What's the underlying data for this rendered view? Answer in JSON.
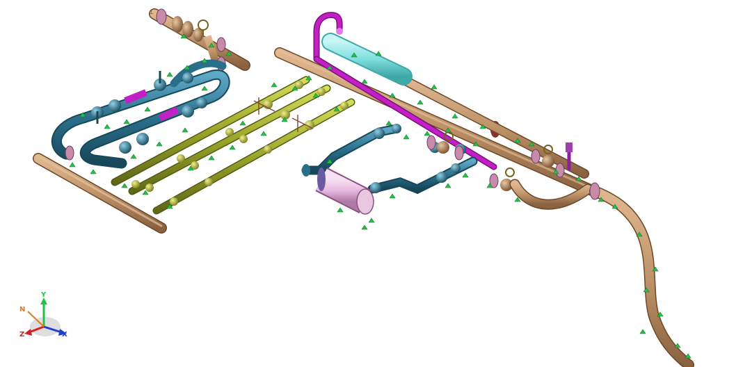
{
  "viewport": {
    "background": "#ffffff",
    "description_hidden": true
  },
  "colors": {
    "bronze_pipe": "#c0946a",
    "bronze_dark": "#8a6240",
    "teal_pipe": "#2a6f8a",
    "teal_light": "#4f9bb8",
    "olive_pipe": "#9aa52a",
    "olive_light": "#c5cf4a",
    "magenta_pipe": "#c21fc7",
    "cyan_vessel": "#7fdede",
    "pink_vessel": "#e8b8e0",
    "flange_pink": "#c78aa8",
    "support_green": "#22c24a",
    "valve_yellow": "#e2e24a"
  },
  "axis_triad": {
    "labels": {
      "y": "Y",
      "n": "N",
      "z": "Z",
      "x": "X"
    },
    "colors": {
      "y": "#22c24a",
      "x": "#1f3fd1",
      "z": "#d12222",
      "n": "#e07a1f"
    },
    "icon_names": [
      "axis-triad-icon"
    ]
  }
}
